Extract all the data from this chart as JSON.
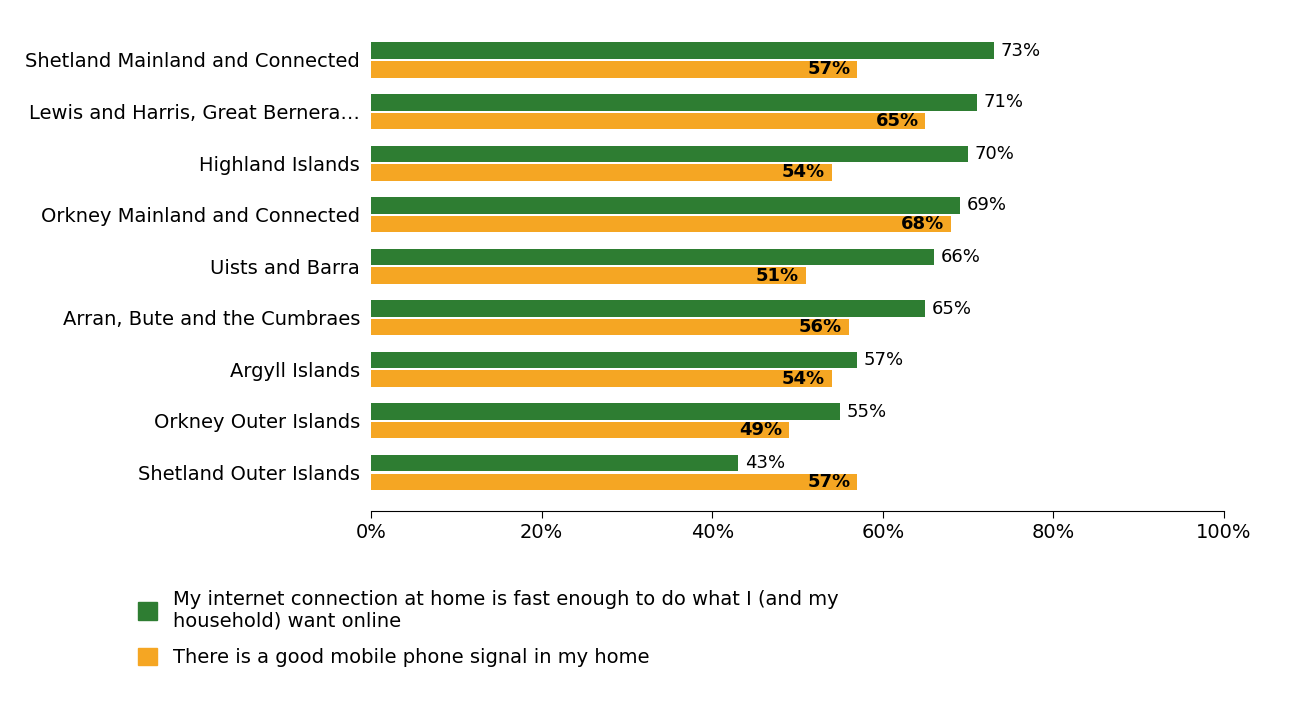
{
  "categories": [
    "Shetland Mainland and Connected",
    "Lewis and Harris, Great Bernera…",
    "Highland Islands",
    "Orkney Mainland and Connected",
    "Uists and Barra",
    "Arran, Bute and the Cumbraes",
    "Argyll Islands",
    "Orkney Outer Islands",
    "Shetland Outer Islands"
  ],
  "internet_values": [
    73,
    71,
    70,
    69,
    66,
    65,
    57,
    55,
    43
  ],
  "mobile_values": [
    57,
    65,
    54,
    68,
    51,
    56,
    54,
    49,
    57
  ],
  "internet_color": "#2e7d32",
  "mobile_color": "#f5a623",
  "background_color": "#ffffff",
  "bar_height": 0.32,
  "xlim": [
    0,
    100
  ],
  "xticks": [
    0,
    20,
    40,
    60,
    80,
    100
  ],
  "xticklabels": [
    "0%",
    "20%",
    "40%",
    "60%",
    "80%",
    "100%"
  ],
  "legend_internet": "My internet connection at home is fast enough to do what I (and my\nhousehold) want online",
  "legend_mobile": "There is a good mobile phone signal in my home",
  "label_fontsize": 14,
  "tick_fontsize": 14,
  "legend_fontsize": 14,
  "value_fontsize": 13
}
